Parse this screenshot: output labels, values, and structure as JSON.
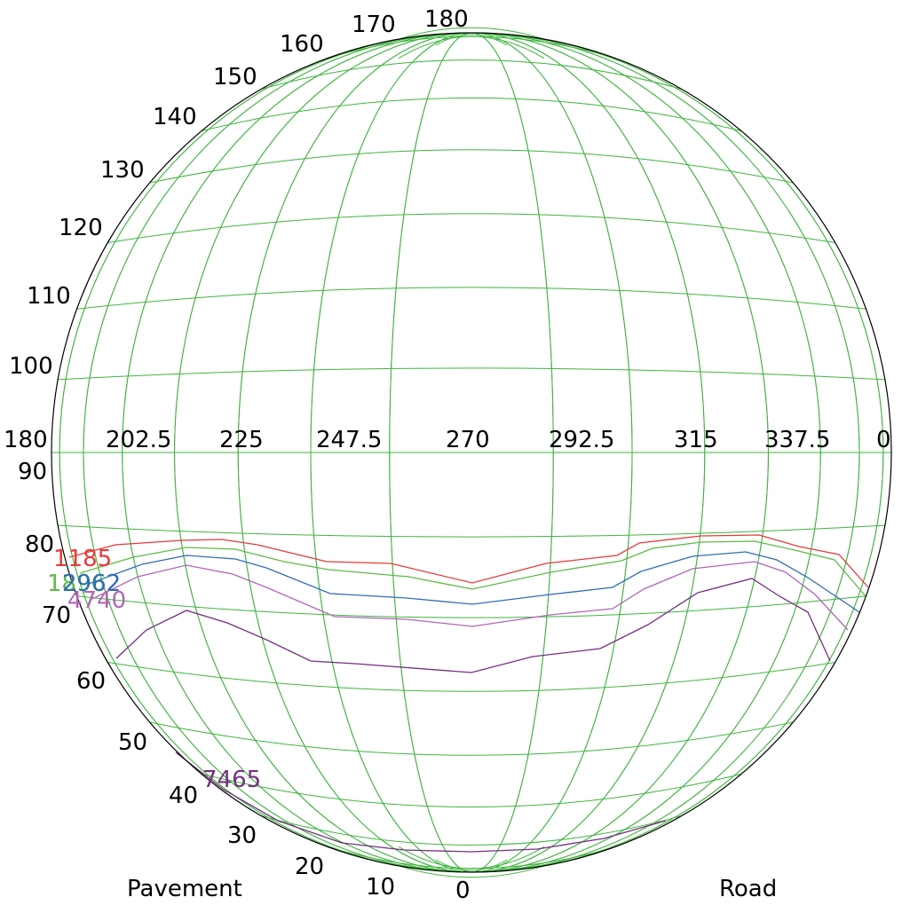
{
  "diagram": {
    "type": "isolux-sphere",
    "grid_color": "#3fb43f",
    "circle_color": "#000000",
    "gamma_labels": [
      "0",
      "10",
      "20",
      "30",
      "40",
      "50",
      "60",
      "70",
      "80",
      "90",
      "100",
      "110",
      "120",
      "130",
      "140",
      "150",
      "160",
      "170",
      "180"
    ],
    "c_plane_labels": [
      "180",
      "202.5",
      "225",
      "247.5",
      "270",
      "292.5",
      "315",
      "337.5",
      "0"
    ],
    "side_labels": {
      "left": "Pavement",
      "right": "Road"
    },
    "contours": [
      {
        "label": "1185",
        "color": "#e8393a"
      },
      {
        "label": "1896",
        "color": "#5dbb46"
      },
      {
        "label": "2962",
        "color": "#2f6db5"
      },
      {
        "label": "4740",
        "color": "#b066b7"
      },
      {
        "label": "7465",
        "color": "#74307f"
      }
    ]
  }
}
